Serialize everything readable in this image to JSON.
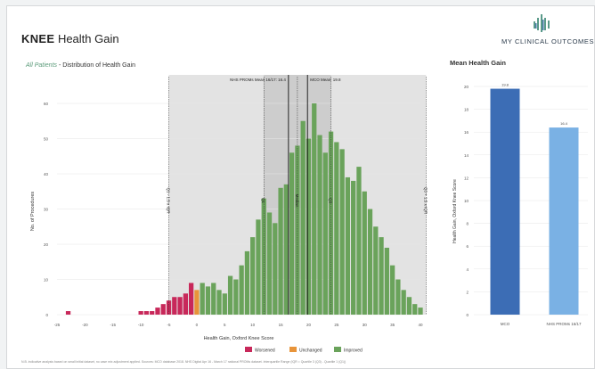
{
  "header": {
    "title_bold": "KNEE",
    "title_rest": " Health Gain",
    "brand": "MY CLINICAL OUTCOMES"
  },
  "main_chart": {
    "subtitle_highlight": "All Patients",
    "subtitle_sep": " - ",
    "subtitle": "Distribution of Health Gain"
  },
  "side_chart": {
    "title": "Mean Health Gain"
  },
  "colors": {
    "worsened": "#c8285a",
    "unchanged": "#e8943a",
    "improved": "#6aa35b",
    "mco_bar": "#3c6db5",
    "nhs_bar": "#7ab1e4",
    "shade": "#e3e3e3",
    "shade_dark": "#cdcdcd"
  },
  "footnote": "N.B. indicative analysis based on small initial dataset, no case mix adjustment applied. Sources: MCO database 2018. NHS Digital Apr 16 - March 17 national PROMs dataset. Interquartile Range (IQR = Quartile 3 (Q3) - Quartile 1 (Q1))",
  "chart_data": [
    {
      "type": "bar",
      "xlabel": "Health Gain, Oxford Knee Score",
      "ylabel": "No. of Procedures",
      "xlim": [
        -25,
        40
      ],
      "ylim": [
        0,
        60
      ],
      "x_ticks": [
        -25,
        -20,
        -15,
        -10,
        -5,
        0,
        5,
        10,
        15,
        20,
        25,
        30,
        35,
        40
      ],
      "y_ticks": [
        0,
        10,
        20,
        30,
        40,
        50,
        60
      ],
      "legend": [
        "Worsened",
        "Unchanged",
        "Improved"
      ],
      "legend_position": "bottom",
      "bars": [
        {
          "x": -23,
          "value": 1,
          "group": "Worsened"
        },
        {
          "x": -10,
          "value": 1,
          "group": "Worsened"
        },
        {
          "x": -9,
          "value": 1,
          "group": "Worsened"
        },
        {
          "x": -8,
          "value": 1,
          "group": "Worsened"
        },
        {
          "x": -7,
          "value": 2,
          "group": "Worsened"
        },
        {
          "x": -6,
          "value": 3,
          "group": "Worsened"
        },
        {
          "x": -5,
          "value": 4,
          "group": "Worsened"
        },
        {
          "x": -4,
          "value": 5,
          "group": "Worsened"
        },
        {
          "x": -3,
          "value": 5,
          "group": "Worsened"
        },
        {
          "x": -2,
          "value": 6,
          "group": "Worsened"
        },
        {
          "x": -1,
          "value": 9,
          "group": "Worsened"
        },
        {
          "x": 0,
          "value": 7,
          "group": "Unchanged"
        },
        {
          "x": 1,
          "value": 9,
          "group": "Improved"
        },
        {
          "x": 2,
          "value": 8,
          "group": "Improved"
        },
        {
          "x": 3,
          "value": 9,
          "group": "Improved"
        },
        {
          "x": 4,
          "value": 7,
          "group": "Improved"
        },
        {
          "x": 5,
          "value": 6,
          "group": "Improved"
        },
        {
          "x": 6,
          "value": 11,
          "group": "Improved"
        },
        {
          "x": 7,
          "value": 10,
          "group": "Improved"
        },
        {
          "x": 8,
          "value": 14,
          "group": "Improved"
        },
        {
          "x": 9,
          "value": 18,
          "group": "Improved"
        },
        {
          "x": 10,
          "value": 22,
          "group": "Improved"
        },
        {
          "x": 11,
          "value": 27,
          "group": "Improved"
        },
        {
          "x": 12,
          "value": 33,
          "group": "Improved"
        },
        {
          "x": 13,
          "value": 29,
          "group": "Improved"
        },
        {
          "x": 14,
          "value": 26,
          "group": "Improved"
        },
        {
          "x": 15,
          "value": 36,
          "group": "Improved"
        },
        {
          "x": 16,
          "value": 37,
          "group": "Improved"
        },
        {
          "x": 17,
          "value": 46,
          "group": "Improved"
        },
        {
          "x": 18,
          "value": 48,
          "group": "Improved"
        },
        {
          "x": 19,
          "value": 55,
          "group": "Improved"
        },
        {
          "x": 20,
          "value": 50,
          "group": "Improved"
        },
        {
          "x": 21,
          "value": 60,
          "group": "Improved"
        },
        {
          "x": 22,
          "value": 51,
          "group": "Improved"
        },
        {
          "x": 23,
          "value": 46,
          "group": "Improved"
        },
        {
          "x": 24,
          "value": 52,
          "group": "Improved"
        },
        {
          "x": 25,
          "value": 49,
          "group": "Improved"
        },
        {
          "x": 26,
          "value": 47,
          "group": "Improved"
        },
        {
          "x": 27,
          "value": 39,
          "group": "Improved"
        },
        {
          "x": 28,
          "value": 38,
          "group": "Improved"
        },
        {
          "x": 29,
          "value": 42,
          "group": "Improved"
        },
        {
          "x": 30,
          "value": 35,
          "group": "Improved"
        },
        {
          "x": 31,
          "value": 30,
          "group": "Improved"
        },
        {
          "x": 32,
          "value": 25,
          "group": "Improved"
        },
        {
          "x": 33,
          "value": 22,
          "group": "Improved"
        },
        {
          "x": 34,
          "value": 19,
          "group": "Improved"
        },
        {
          "x": 35,
          "value": 14,
          "group": "Improved"
        },
        {
          "x": 36,
          "value": 10,
          "group": "Improved"
        },
        {
          "x": 37,
          "value": 7,
          "group": "Improved"
        },
        {
          "x": 38,
          "value": 5,
          "group": "Improved"
        },
        {
          "x": 39,
          "value": 3,
          "group": "Improved"
        },
        {
          "x": 40,
          "value": 2,
          "group": "Improved"
        }
      ],
      "reference_lines": [
        {
          "label": "Q1 - 1.5 x IQR",
          "x": -5
        },
        {
          "label": "Q1",
          "x": 12
        },
        {
          "label": "Median",
          "x": 18
        },
        {
          "label": "Q3",
          "x": 24
        },
        {
          "label": "Q3 + 1.5 x IQR",
          "x": 41
        },
        {
          "label": "NHS PROMs Mean 16/17: 16.4",
          "x": 16.4
        },
        {
          "label": "MCO Mean: 19.8",
          "x": 19.8
        }
      ],
      "shaded_range": [
        -5,
        41
      ],
      "iqr_range": [
        12,
        24
      ]
    },
    {
      "type": "bar",
      "title": "Mean Health Gain",
      "ylabel": "Health Gain, Oxford Knee Score",
      "ylim": [
        0,
        20
      ],
      "y_ticks": [
        0,
        2,
        4,
        6,
        8,
        10,
        12,
        14,
        16,
        18,
        20
      ],
      "categories": [
        "MCO",
        "NHS PROMs 16/17"
      ],
      "values": [
        19.8,
        16.4
      ],
      "value_labels": [
        "19.8",
        "16.4"
      ]
    }
  ]
}
